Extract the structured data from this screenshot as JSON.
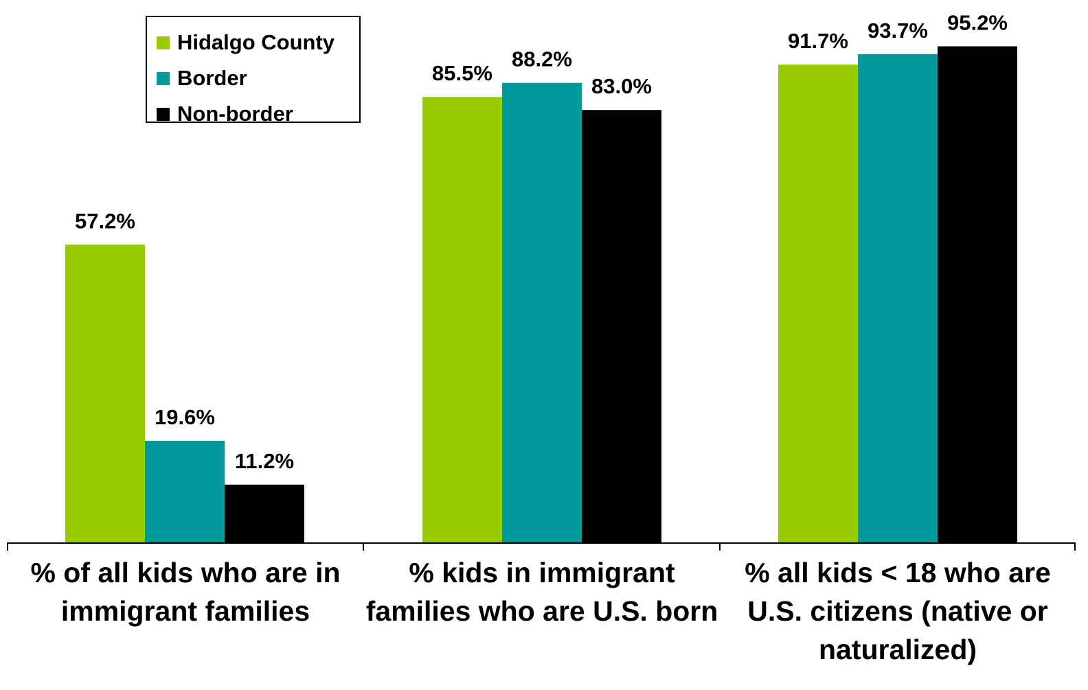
{
  "chart_data": {
    "type": "bar",
    "categories": [
      "% of all kids who are in immigrant families",
      "% kids in immigrant families who are U.S. born",
      "% all kids < 18 who are U.S. citizens (native or naturalized)"
    ],
    "series": [
      {
        "name": "Hidalgo County",
        "color": "#99cc00",
        "values": [
          57.2,
          85.5,
          91.7
        ],
        "labels": [
          "57.2%",
          "85.5%",
          "91.7%"
        ]
      },
      {
        "name": "Border",
        "color": "#009999",
        "values": [
          19.6,
          88.2,
          93.7
        ],
        "labels": [
          "19.6%",
          "88.2%",
          "93.7%"
        ]
      },
      {
        "name": "Non-border",
        "color": "#000000",
        "values": [
          11.2,
          83.0,
          95.2
        ],
        "labels": [
          "11.2%",
          "83.0%",
          "95.2%"
        ]
      }
    ],
    "ylim": [
      0,
      100
    ],
    "grid": false,
    "legend_position": "top-left"
  }
}
